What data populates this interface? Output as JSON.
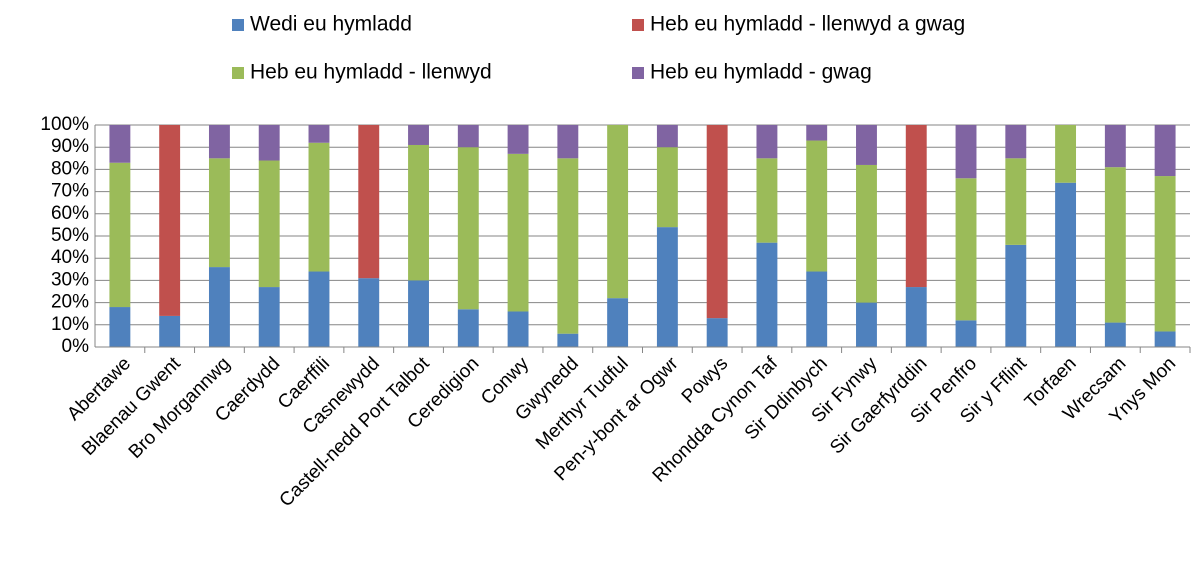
{
  "chart_data": {
    "type": "stacked_bar",
    "categories": [
      "Abertawe",
      "Blaenau Gwent",
      "Bro Morgannwg",
      "Caerdydd",
      "Caerffili",
      "Casnewydd",
      "Castell-nedd Port Talbot",
      "Ceredigion",
      "Conwy",
      "Gwynedd",
      "Merthyr Tudful",
      "Pen-y-bont ar Ogwr",
      "Powys",
      "Rhondda Cynon Taf",
      "Sir Ddinbych",
      "Sir Fynwy",
      "Sir Gaerfyrddin",
      "Sir Penfro",
      "Sir y Fflint",
      "Torfaen",
      "Wrecsam",
      "Ynys Mon"
    ],
    "series": [
      {
        "name": "Wedi eu hymladd",
        "color": "#4f81bd",
        "values": [
          18,
          14,
          36,
          27,
          34,
          31,
          30,
          17,
          16,
          6,
          22,
          54,
          13,
          47,
          34,
          20,
          27,
          12,
          46,
          74,
          11,
          7
        ]
      },
      {
        "name": "Heb eu hymladd - llenwyd a gwag",
        "color": "#c0504d",
        "values": [
          0,
          86,
          0,
          0,
          0,
          69,
          0,
          0,
          0,
          0,
          0,
          0,
          87,
          0,
          0,
          0,
          73,
          0,
          0,
          0,
          0,
          0
        ]
      },
      {
        "name": "Heb eu hymladd - llenwyd",
        "color": "#9bbb59",
        "values": [
          65,
          0,
          49,
          57,
          58,
          0,
          61,
          73,
          71,
          79,
          78,
          36,
          0,
          38,
          59,
          62,
          0,
          64,
          39,
          26,
          70,
          70
        ]
      },
      {
        "name": "Heb eu hymladd - gwag",
        "color": "#8064a2",
        "values": [
          17,
          0,
          15,
          16,
          8,
          0,
          9,
          10,
          13,
          15,
          0,
          10,
          0,
          15,
          7,
          18,
          0,
          24,
          15,
          0,
          19,
          23
        ]
      }
    ],
    "ylim": [
      0,
      100
    ],
    "yticks": [
      {
        "value": 0,
        "label": "0%"
      },
      {
        "value": 10,
        "label": "10%"
      },
      {
        "value": 20,
        "label": "20%"
      },
      {
        "value": 30,
        "label": "30%"
      },
      {
        "value": 40,
        "label": "40%"
      },
      {
        "value": 50,
        "label": "50%"
      },
      {
        "value": 60,
        "label": "60%"
      },
      {
        "value": 70,
        "label": "70%"
      },
      {
        "value": 80,
        "label": "80%"
      },
      {
        "value": 90,
        "label": "90%"
      },
      {
        "value": 100,
        "label": "100%"
      }
    ],
    "grid": true,
    "legend": "top"
  }
}
